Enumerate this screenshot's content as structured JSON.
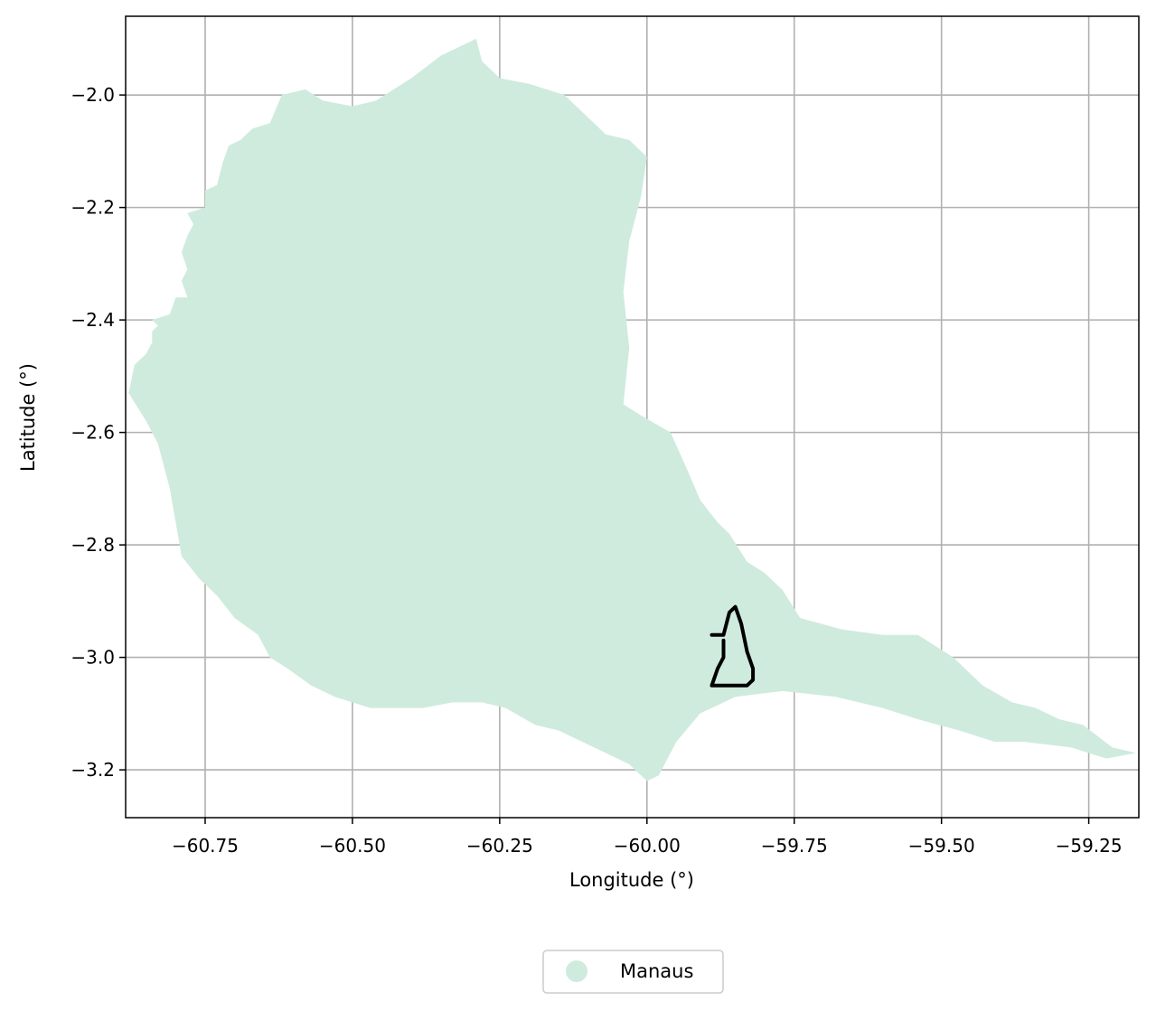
{
  "map": {
    "x_axis": {
      "label": "Longitude (°)",
      "range": [
        -60.885,
        -59.165
      ],
      "ticks": [
        -60.75,
        -60.5,
        -60.25,
        -60.0,
        -59.75,
        -59.5,
        -59.25
      ],
      "tick_labels": [
        "−60.75",
        "−60.50",
        "−60.25",
        "−60.00",
        "−59.75",
        "−59.50",
        "−59.25"
      ]
    },
    "y_axis": {
      "label": "Latitude (°)",
      "range": [
        -3.285,
        -1.86
      ],
      "ticks": [
        -2.0,
        -2.2,
        -2.4,
        -2.6,
        -2.8,
        -3.0,
        -3.2
      ],
      "tick_labels": [
        "−2.0",
        "−2.2",
        "−2.4",
        "−2.6",
        "−2.8",
        "−3.0",
        "−3.2"
      ]
    },
    "grid": true,
    "legend": {
      "placement": "bottom-center",
      "items": [
        {
          "label": "Manaus",
          "color": "#cfebde"
        }
      ]
    },
    "colors": {
      "region_fill": "#cfebde",
      "boundary": "#000000",
      "grid": "#b0b0b0",
      "frame": "#000000"
    }
  },
  "chart_data": {
    "type": "map",
    "xlabel": "Longitude (°)",
    "ylabel": "Latitude (°)",
    "xlim": [
      -60.885,
      -59.165
    ],
    "ylim": [
      -3.285,
      -1.86
    ],
    "grid": true,
    "series": [
      {
        "name": "Manaus",
        "kind": "filled-polygon",
        "color": "#cfebde",
        "coordinates": [
          [
            -60.88,
            -2.53
          ],
          [
            -60.87,
            -2.48
          ],
          [
            -60.85,
            -2.46
          ],
          [
            -60.84,
            -2.44
          ],
          [
            -60.84,
            -2.42
          ],
          [
            -60.83,
            -2.41
          ],
          [
            -60.84,
            -2.4
          ],
          [
            -60.81,
            -2.39
          ],
          [
            -60.8,
            -2.36
          ],
          [
            -60.78,
            -2.36
          ],
          [
            -60.79,
            -2.33
          ],
          [
            -60.78,
            -2.31
          ],
          [
            -60.79,
            -2.28
          ],
          [
            -60.78,
            -2.25
          ],
          [
            -60.77,
            -2.23
          ],
          [
            -60.78,
            -2.21
          ],
          [
            -60.75,
            -2.2
          ],
          [
            -60.75,
            -2.17
          ],
          [
            -60.73,
            -2.16
          ],
          [
            -60.72,
            -2.12
          ],
          [
            -60.71,
            -2.09
          ],
          [
            -60.69,
            -2.08
          ],
          [
            -60.67,
            -2.06
          ],
          [
            -60.64,
            -2.05
          ],
          [
            -60.62,
            -2.0
          ],
          [
            -60.58,
            -1.99
          ],
          [
            -60.55,
            -2.01
          ],
          [
            -60.5,
            -2.02
          ],
          [
            -60.46,
            -2.01
          ],
          [
            -60.4,
            -1.97
          ],
          [
            -60.35,
            -1.93
          ],
          [
            -60.29,
            -1.9
          ],
          [
            -60.28,
            -1.94
          ],
          [
            -60.25,
            -1.97
          ],
          [
            -60.2,
            -1.98
          ],
          [
            -60.14,
            -2.0
          ],
          [
            -60.1,
            -2.04
          ],
          [
            -60.07,
            -2.07
          ],
          [
            -60.03,
            -2.08
          ],
          [
            -60.0,
            -2.11
          ],
          [
            -60.01,
            -2.18
          ],
          [
            -60.03,
            -2.26
          ],
          [
            -60.04,
            -2.35
          ],
          [
            -60.03,
            -2.45
          ],
          [
            -60.04,
            -2.55
          ],
          [
            -60.01,
            -2.57
          ],
          [
            -59.96,
            -2.6
          ],
          [
            -59.93,
            -2.67
          ],
          [
            -59.91,
            -2.72
          ],
          [
            -59.88,
            -2.76
          ],
          [
            -59.86,
            -2.78
          ],
          [
            -59.83,
            -2.83
          ],
          [
            -59.8,
            -2.85
          ],
          [
            -59.77,
            -2.88
          ],
          [
            -59.74,
            -2.93
          ],
          [
            -59.67,
            -2.95
          ],
          [
            -59.6,
            -2.96
          ],
          [
            -59.54,
            -2.96
          ],
          [
            -59.48,
            -3.0
          ],
          [
            -59.43,
            -3.05
          ],
          [
            -59.38,
            -3.08
          ],
          [
            -59.34,
            -3.09
          ],
          [
            -59.3,
            -3.11
          ],
          [
            -59.26,
            -3.12
          ],
          [
            -59.21,
            -3.16
          ],
          [
            -59.17,
            -3.17
          ],
          [
            -59.22,
            -3.18
          ],
          [
            -59.28,
            -3.16
          ],
          [
            -59.36,
            -3.15
          ],
          [
            -59.41,
            -3.15
          ],
          [
            -59.47,
            -3.13
          ],
          [
            -59.54,
            -3.11
          ],
          [
            -59.6,
            -3.09
          ],
          [
            -59.68,
            -3.07
          ],
          [
            -59.77,
            -3.06
          ],
          [
            -59.85,
            -3.07
          ],
          [
            -59.91,
            -3.1
          ],
          [
            -59.95,
            -3.15
          ],
          [
            -59.97,
            -3.19
          ],
          [
            -59.98,
            -3.21
          ],
          [
            -60.0,
            -3.22
          ],
          [
            -60.03,
            -3.19
          ],
          [
            -60.07,
            -3.17
          ],
          [
            -60.11,
            -3.15
          ],
          [
            -60.15,
            -3.13
          ],
          [
            -60.19,
            -3.12
          ],
          [
            -60.24,
            -3.09
          ],
          [
            -60.28,
            -3.08
          ],
          [
            -60.33,
            -3.08
          ],
          [
            -60.38,
            -3.09
          ],
          [
            -60.43,
            -3.09
          ],
          [
            -60.47,
            -3.09
          ],
          [
            -60.5,
            -3.08
          ],
          [
            -60.53,
            -3.07
          ],
          [
            -60.57,
            -3.05
          ],
          [
            -60.61,
            -3.02
          ],
          [
            -60.64,
            -3.0
          ],
          [
            -60.66,
            -2.96
          ],
          [
            -60.7,
            -2.93
          ],
          [
            -60.73,
            -2.89
          ],
          [
            -60.76,
            -2.86
          ],
          [
            -60.79,
            -2.82
          ],
          [
            -60.81,
            -2.7
          ],
          [
            -60.83,
            -2.62
          ],
          [
            -60.85,
            -2.58
          ]
        ]
      },
      {
        "name": "boundary outline",
        "kind": "polyline",
        "color": "#000000",
        "coordinates": [
          [
            -59.89,
            -2.96
          ],
          [
            -59.87,
            -2.96
          ],
          [
            -59.86,
            -2.92
          ],
          [
            -59.85,
            -2.91
          ],
          [
            -59.84,
            -2.94
          ],
          [
            -59.83,
            -2.99
          ],
          [
            -59.82,
            -3.02
          ],
          [
            -59.82,
            -3.04
          ],
          [
            -59.83,
            -3.05
          ],
          [
            -59.86,
            -3.05
          ],
          [
            -59.89,
            -3.05
          ],
          [
            -59.88,
            -3.02
          ],
          [
            -59.87,
            -3.0
          ],
          [
            -59.87,
            -2.97
          ]
        ]
      }
    ]
  }
}
